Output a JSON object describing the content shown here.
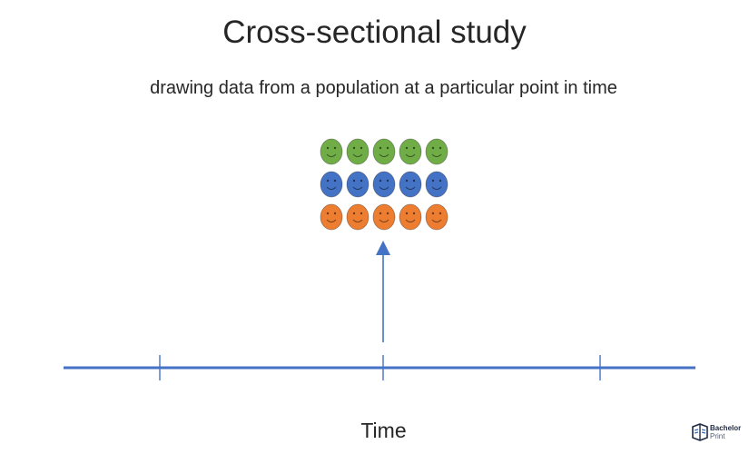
{
  "title": "Cross-sectional study",
  "subtitle": "drawing data from a population at a particular point in time",
  "axis_label": "Time",
  "colors": {
    "green": "#70ad47",
    "blue": "#4472c4",
    "orange": "#ed7d31",
    "line": "#4472c4",
    "text": "#262626"
  },
  "faces": {
    "rows": [
      "green",
      "blue",
      "orange"
    ],
    "per_row": 5,
    "icon": "smiley-face-icon"
  },
  "timeline": {
    "tick_count": 3,
    "arrow_icon": "up-arrow-icon"
  },
  "logo": {
    "line1": "Bachelor",
    "line2": "Print",
    "icon": "book-icon"
  }
}
